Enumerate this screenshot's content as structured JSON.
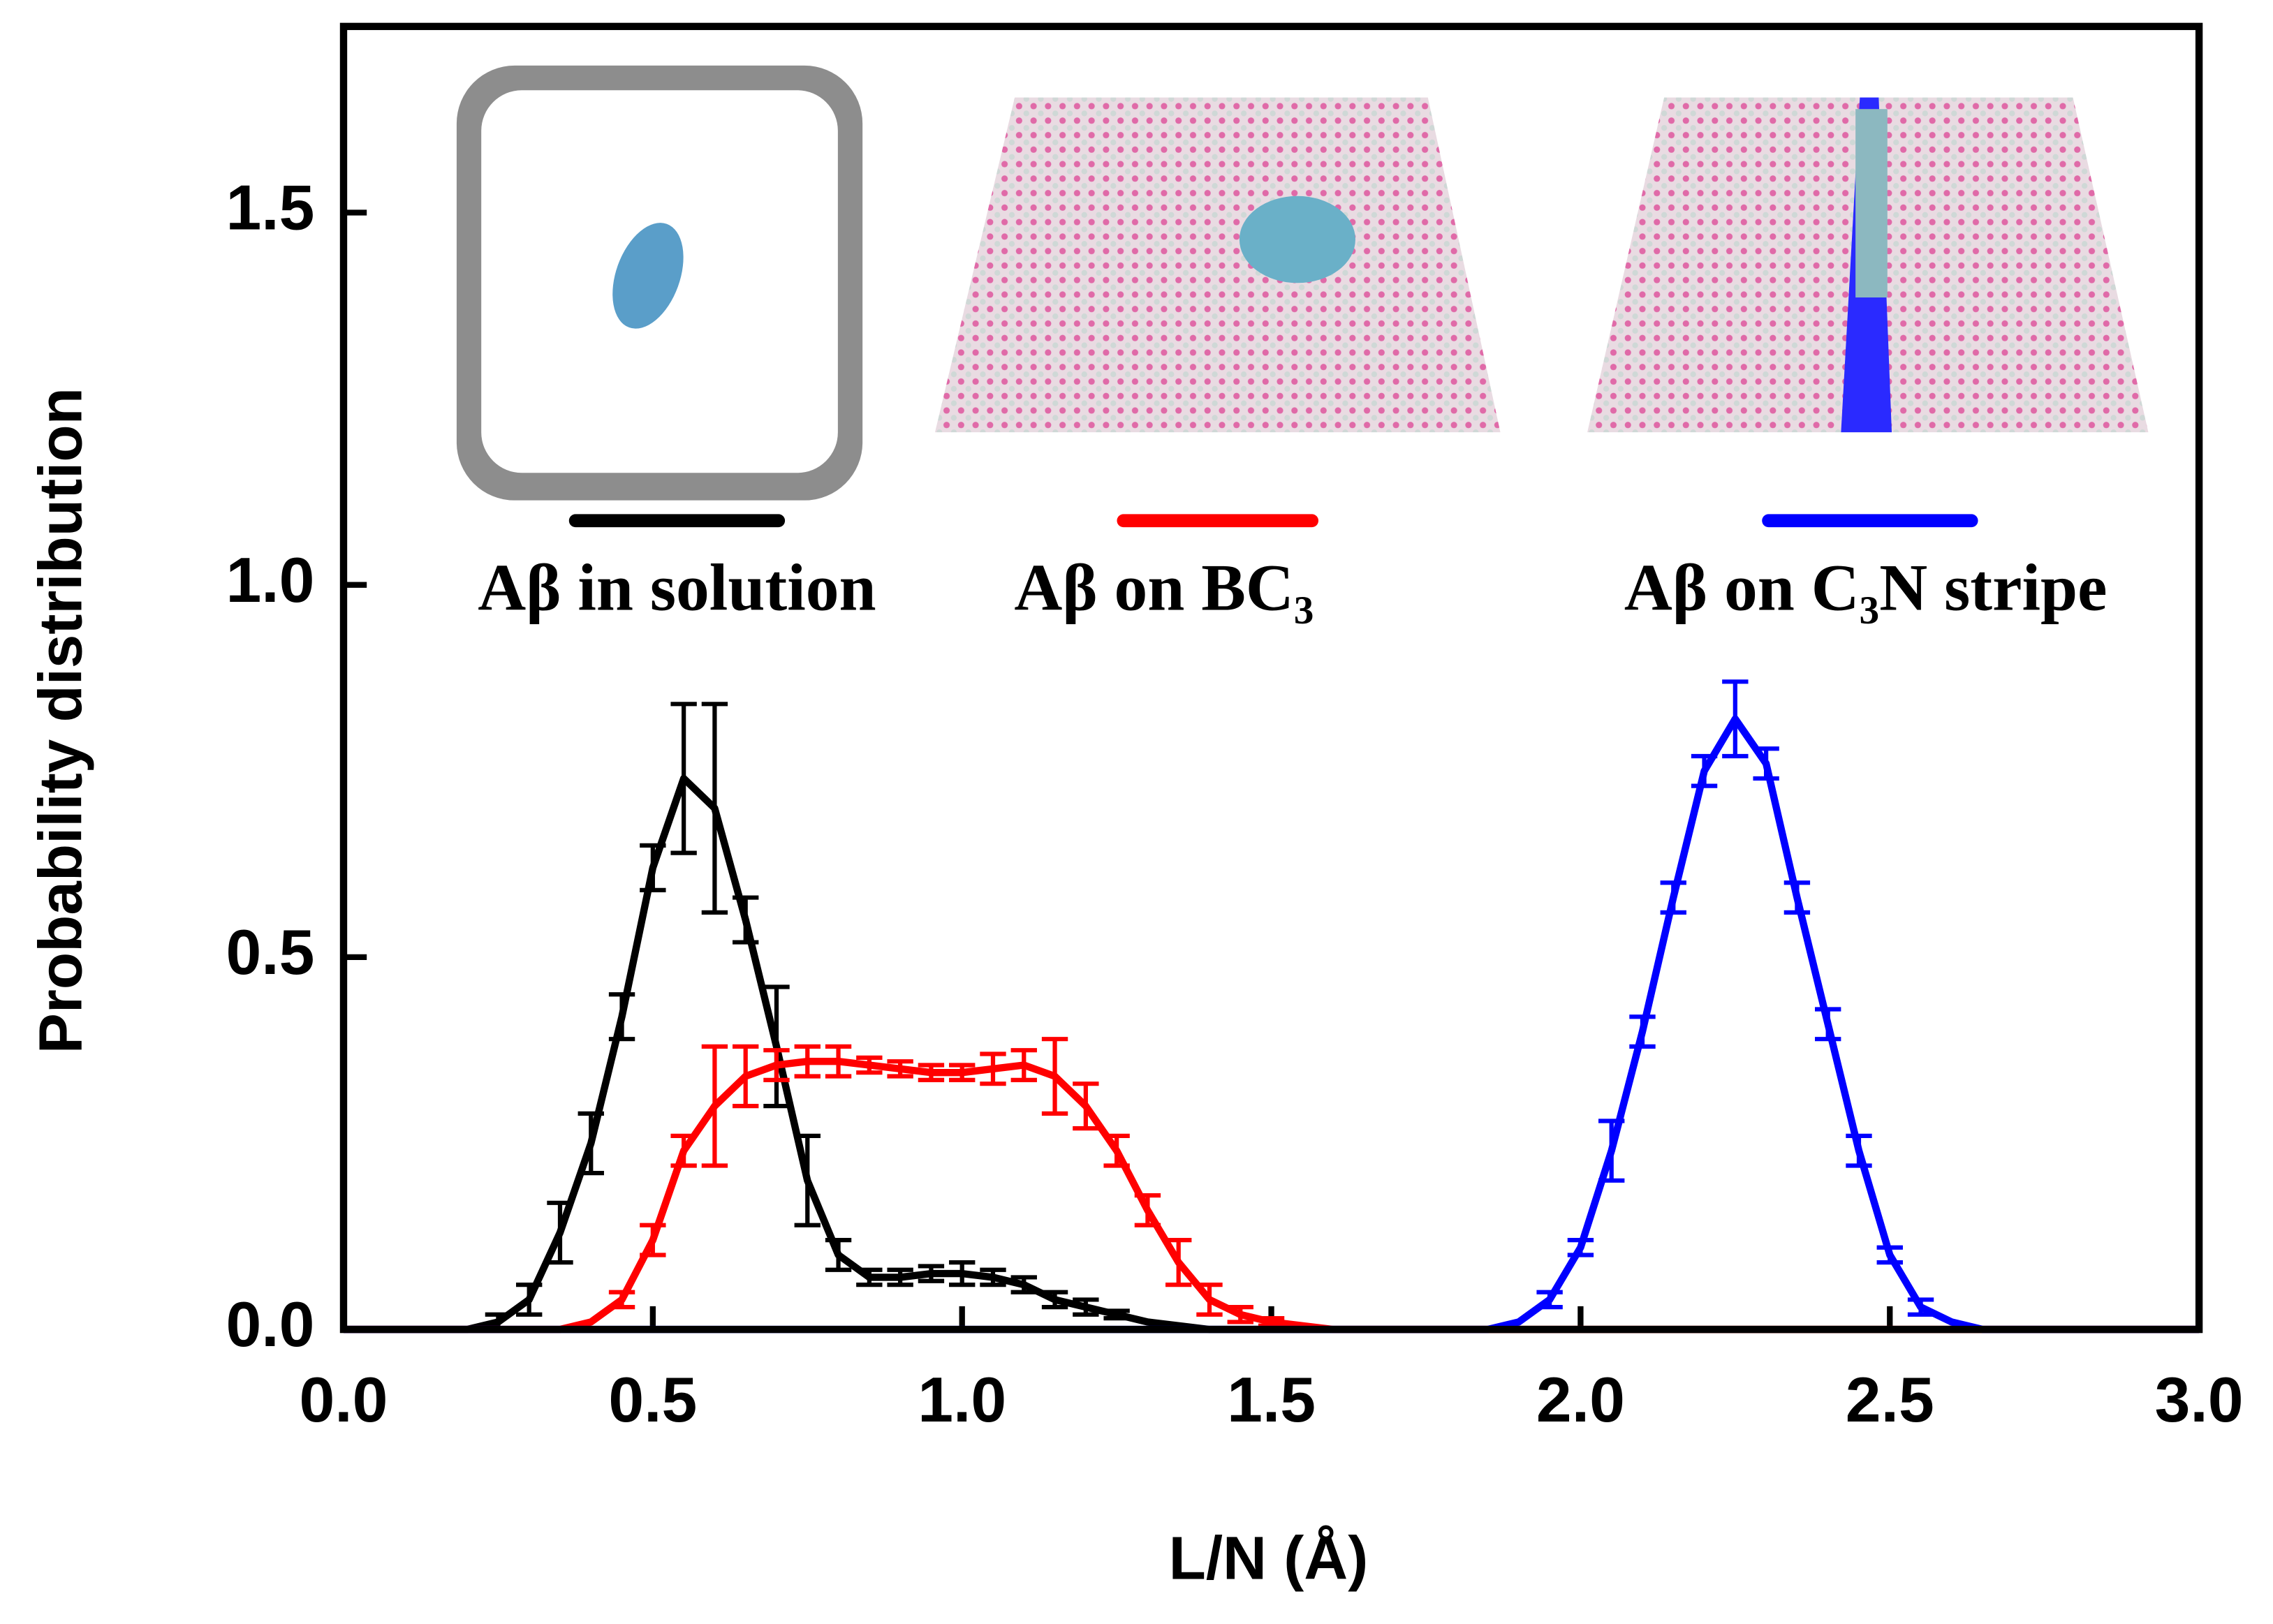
{
  "chart_data": {
    "type": "line",
    "xlabel": "L/N (Å)",
    "ylabel": "Probability distribution",
    "xlim": [
      0,
      3
    ],
    "ylim": [
      0,
      1.75
    ],
    "xticks": [
      {
        "value": 0,
        "label": "0.0"
      },
      0.5,
      {
        "value": 1,
        "label": "1.0"
      },
      1.5,
      {
        "value": 2,
        "label": "2.0"
      },
      2.5,
      {
        "value": 3,
        "label": "3.0"
      }
    ],
    "yticks": [
      {
        "value": 0,
        "label": "0.0"
      },
      0.5,
      {
        "value": 1,
        "label": "1.0"
      },
      1.5
    ],
    "x": [
      0,
      0.05,
      0.1,
      0.15,
      0.2,
      0.25,
      0.3,
      0.35,
      0.4,
      0.45,
      0.5,
      0.55,
      0.6,
      0.65,
      0.7,
      0.75,
      0.8,
      0.85,
      0.9,
      0.95,
      1,
      1.05,
      1.1,
      1.15,
      1.2,
      1.25,
      1.3,
      1.35,
      1.4,
      1.45,
      1.5,
      1.55,
      1.6,
      1.65,
      1.7,
      1.75,
      1.8,
      1.85,
      1.9,
      1.95,
      2,
      2.05,
      2.1,
      2.15,
      2.2,
      2.25,
      2.3,
      2.35,
      2.4,
      2.45,
      2.5,
      2.55,
      2.6,
      2.65,
      2.7,
      2.75,
      2.8,
      2.85,
      2.9,
      2.95,
      3
    ],
    "series": [
      {
        "name": "Aβ in solution",
        "color": "#000000",
        "values": [
          0,
          0,
          0,
          0,
          0,
          0.01,
          0.04,
          0.13,
          0.25,
          0.42,
          0.62,
          0.74,
          0.7,
          0.55,
          0.38,
          0.2,
          0.1,
          0.07,
          0.07,
          0.075,
          0.075,
          0.07,
          0.06,
          0.04,
          0.03,
          0.02,
          0.01,
          0.005,
          0,
          0,
          0,
          0,
          0,
          0,
          0,
          0,
          0,
          0,
          0,
          0,
          0,
          0,
          0,
          0,
          0,
          0,
          0,
          0,
          0,
          0,
          0,
          0,
          0,
          0,
          0,
          0,
          0,
          0,
          0,
          0,
          0
        ],
        "errors": [
          0,
          0,
          0,
          0,
          0,
          0.01,
          0.02,
          0.04,
          0.04,
          0.03,
          0.03,
          0.1,
          0.14,
          0.03,
          0.08,
          0.06,
          0.02,
          0.01,
          0.01,
          0.01,
          0.015,
          0.01,
          0.01,
          0.01,
          0.01,
          0.005,
          0,
          0,
          0,
          0,
          0,
          0,
          0,
          0,
          0,
          0,
          0,
          0,
          0,
          0,
          0,
          0,
          0,
          0,
          0,
          0,
          0,
          0,
          0,
          0,
          0,
          0,
          0,
          0,
          0,
          0,
          0,
          0,
          0,
          0,
          0
        ]
      },
      {
        "name": "Aβ on BC₃",
        "color": "#ff0000",
        "values": [
          0,
          0,
          0,
          0,
          0,
          0,
          0,
          0,
          0.01,
          0.04,
          0.12,
          0.24,
          0.3,
          0.34,
          0.355,
          0.36,
          0.36,
          0.355,
          0.35,
          0.345,
          0.345,
          0.35,
          0.355,
          0.34,
          0.3,
          0.24,
          0.16,
          0.09,
          0.04,
          0.02,
          0.01,
          0.005,
          0,
          0,
          0,
          0,
          0,
          0,
          0,
          0,
          0,
          0,
          0,
          0,
          0,
          0,
          0,
          0,
          0,
          0,
          0,
          0,
          0,
          0,
          0,
          0,
          0,
          0,
          0,
          0,
          0
        ],
        "errors": [
          0,
          0,
          0,
          0,
          0,
          0,
          0,
          0,
          0,
          0.01,
          0.02,
          0.02,
          0.08,
          0.04,
          0.02,
          0.02,
          0.02,
          0.01,
          0.01,
          0.01,
          0.01,
          0.02,
          0.02,
          0.05,
          0.03,
          0.02,
          0.02,
          0.03,
          0.02,
          0.01,
          0.005,
          0,
          0,
          0,
          0,
          0,
          0,
          0,
          0,
          0,
          0,
          0,
          0,
          0,
          0,
          0,
          0,
          0,
          0,
          0,
          0,
          0,
          0,
          0,
          0,
          0,
          0,
          0,
          0,
          0,
          0
        ]
      },
      {
        "name": "Aβ on C₃N stripe",
        "color": "#0000ff",
        "values": [
          0,
          0,
          0,
          0,
          0,
          0,
          0,
          0,
          0,
          0,
          0,
          0,
          0,
          0,
          0,
          0,
          0,
          0,
          0,
          0,
          0,
          0,
          0,
          0,
          0,
          0,
          0,
          0,
          0,
          0,
          0,
          0,
          0,
          0,
          0,
          0,
          0,
          0,
          0.01,
          0.04,
          0.11,
          0.24,
          0.4,
          0.58,
          0.75,
          0.82,
          0.76,
          0.58,
          0.41,
          0.24,
          0.1,
          0.03,
          0.01,
          0,
          0,
          0,
          0,
          0,
          0,
          0,
          0
        ],
        "errors": [
          0,
          0,
          0,
          0,
          0,
          0,
          0,
          0,
          0,
          0,
          0,
          0,
          0,
          0,
          0,
          0,
          0,
          0,
          0,
          0,
          0,
          0,
          0,
          0,
          0,
          0,
          0,
          0,
          0,
          0,
          0,
          0,
          0,
          0,
          0,
          0,
          0,
          0,
          0,
          0.01,
          0.01,
          0.04,
          0.02,
          0.02,
          0.02,
          0.05,
          0.02,
          0.02,
          0.02,
          0.02,
          0.01,
          0.01,
          0,
          0,
          0,
          0,
          0,
          0,
          0,
          0,
          0
        ]
      }
    ]
  }
}
